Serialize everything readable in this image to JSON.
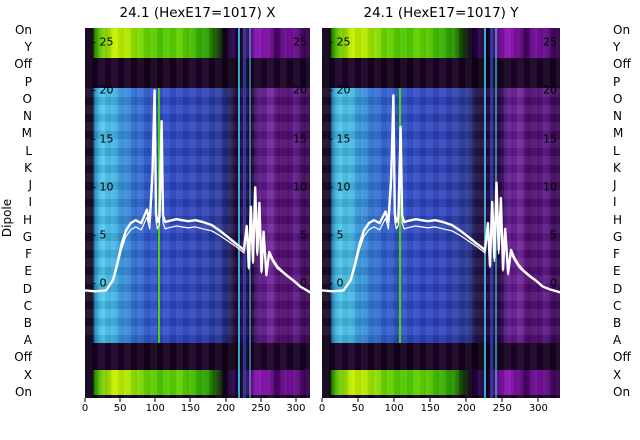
{
  "left_axis": {
    "title": "Dipole",
    "row_labels": [
      "On",
      "Y",
      "Off",
      "P",
      "O",
      "N",
      "M",
      "L",
      "K",
      "J",
      "I",
      "H",
      "G",
      "F",
      "E",
      "D",
      "C",
      "B",
      "A",
      "Off",
      "X",
      "On"
    ]
  },
  "right_axis": {
    "row_labels": [
      "On",
      "Y",
      "Off",
      "P",
      "O",
      "N",
      "M",
      "L",
      "K",
      "J",
      "I",
      "H",
      "G",
      "F",
      "E",
      "D",
      "C",
      "B",
      "A",
      "Off",
      "X",
      "On"
    ]
  },
  "palette": {
    "background": "#ffffff",
    "dark_purple_band": "#140020",
    "green_band": "#4cc800",
    "yellow_green_peak": "#c8f000",
    "interior_cyan": "#49c9ec",
    "interior_blue": "#2c46c6",
    "interior_violet": "#6d1f9a",
    "trace_color": "#ffffff",
    "text_color": "#000000"
  },
  "chart_data": [
    {
      "type": "heatmap",
      "title": "24.1 (HexE17=1017) X",
      "xlabel": "",
      "ylabel": "Dipole",
      "x_ticks": [
        0,
        50,
        100,
        150,
        200,
        250,
        300
      ],
      "x_max": 320,
      "y_ticks": [
        25,
        20,
        15,
        10,
        5,
        0
      ],
      "y_tick_prefix_left": "- ",
      "y_view_range": [
        -12,
        26.5
      ],
      "grid": false,
      "legend": false,
      "rows_top_to_bottom": [
        "On",
        "Y",
        "Off",
        "P",
        "O",
        "N",
        "M",
        "L",
        "K",
        "J",
        "I",
        "H",
        "G",
        "F",
        "E",
        "D",
        "C",
        "B",
        "A",
        "Off",
        "X",
        "On"
      ],
      "band_structure_top_to_bottom": [
        {
          "rows": "On,Y",
          "appearance": "bright green / yellow-green, dark at left edge, purple-magenta at right"
        },
        {
          "rows": "Off",
          "appearance": "very dark purple"
        },
        {
          "rows": "P..A",
          "appearance": "cyan at left fading to blue, dark purple column ~66-74%, violet at right; thin green vertical line ~32%; cyan/blue vertical streaks ~68-73%"
        },
        {
          "rows": "Off",
          "appearance": "very dark purple"
        },
        {
          "rows": "X",
          "appearance": "bright green / yellow-green"
        },
        {
          "rows": "On",
          "appearance": "dark purple"
        }
      ],
      "overlay_traces": [
        {
          "color": "#ffffff",
          "x": [
            0,
            15,
            30,
            40,
            46,
            52,
            58,
            65,
            72,
            80,
            88,
            92,
            96,
            99,
            101,
            103,
            106,
            109,
            111,
            114,
            118,
            124,
            130,
            138,
            147,
            157,
            168,
            180,
            192,
            204,
            214,
            221,
            226,
            230,
            233,
            236,
            239,
            242,
            245,
            248,
            251,
            254,
            258,
            262,
            267,
            273,
            280,
            288,
            297,
            306,
            313,
            320
          ],
          "v": [
            -0.8,
            -0.9,
            -0.8,
            0.3,
            2.0,
            4.0,
            5.4,
            6.2,
            6.5,
            6.2,
            7.6,
            6.3,
            11.5,
            20.0,
            7.2,
            6.3,
            6.8,
            16.8,
            7.0,
            6.3,
            6.4,
            6.5,
            6.6,
            6.5,
            6.4,
            6.5,
            6.3,
            6.0,
            5.4,
            4.7,
            4.1,
            3.7,
            3.4,
            5.9,
            1.6,
            7.9,
            2.2,
            9.9,
            3.1,
            8.3,
            1.2,
            5.3,
            0.8,
            3.2,
            2.4,
            1.7,
            1.2,
            0.7,
            0.2,
            -0.4,
            -0.7,
            -1.0
          ]
        },
        {
          "color": "#ffffff",
          "x": [
            0,
            15,
            30,
            40,
            46,
            52,
            58,
            65,
            72,
            80,
            88,
            92,
            96,
            99,
            101,
            103,
            106,
            109,
            111,
            114,
            118,
            124,
            130,
            138,
            147,
            157,
            168,
            180,
            192,
            204,
            214,
            221,
            226,
            230,
            233,
            236,
            239,
            242,
            245,
            248,
            251,
            254,
            258,
            262,
            267,
            273,
            280,
            288,
            297,
            306,
            313,
            320
          ],
          "v": [
            -0.8,
            -0.9,
            -0.8,
            0.2,
            1.7,
            3.5,
            4.8,
            5.5,
            5.8,
            5.5,
            6.8,
            5.6,
            10.2,
            18.3,
            6.4,
            5.6,
            6.0,
            14.8,
            6.2,
            5.6,
            5.7,
            5.8,
            5.9,
            5.8,
            5.7,
            5.8,
            5.6,
            5.4,
            4.9,
            4.3,
            3.8,
            3.4,
            3.1,
            5.3,
            1.4,
            7.1,
            2.0,
            9.0,
            2.8,
            7.5,
            1.0,
            4.8,
            0.7,
            2.9,
            2.2,
            1.5,
            1.1,
            0.6,
            0.15,
            -0.4,
            -0.7,
            -1.0
          ]
        }
      ]
    },
    {
      "type": "heatmap",
      "title": "24.1 (HexE17=1017) Y",
      "xlabel": "",
      "ylabel": "Dipole",
      "x_ticks": [
        0,
        50,
        100,
        150,
        200,
        250,
        300
      ],
      "x_max": 330,
      "y_ticks": [
        25,
        20,
        15,
        10,
        5,
        0
      ],
      "y_tick_prefix_left": "- ",
      "y_view_range": [
        -12,
        26.5
      ],
      "grid": false,
      "legend": false,
      "rows_top_to_bottom": [
        "On",
        "Y",
        "Off",
        "P",
        "O",
        "N",
        "M",
        "L",
        "K",
        "J",
        "I",
        "H",
        "G",
        "F",
        "E",
        "D",
        "C",
        "B",
        "A",
        "Off",
        "X",
        "On"
      ],
      "band_structure_top_to_bottom": [
        {
          "rows": "On,Y",
          "appearance": "bright green / yellow-green, dark at left edge, purple-magenta at right"
        },
        {
          "rows": "Off",
          "appearance": "very dark purple"
        },
        {
          "rows": "P..A",
          "appearance": "cyan at left fading to blue, dark purple column ~66-74%, violet at right; thin green vertical line ~32%; cyan/blue vertical streaks ~68-73%"
        },
        {
          "rows": "Off",
          "appearance": "very dark purple"
        },
        {
          "rows": "X",
          "appearance": "bright green / yellow-green"
        },
        {
          "rows": "On",
          "appearance": "dark purple"
        }
      ],
      "overlay_traces": [
        {
          "color": "#ffffff",
          "x": [
            0,
            15,
            30,
            40,
            46,
            52,
            58,
            65,
            72,
            80,
            88,
            92,
            96,
            99,
            101,
            103,
            106,
            109,
            111,
            114,
            118,
            124,
            130,
            138,
            147,
            157,
            168,
            180,
            192,
            204,
            214,
            221,
            226,
            230,
            233,
            236,
            239,
            242,
            245,
            248,
            251,
            254,
            258,
            262,
            267,
            273,
            280,
            288,
            297,
            306,
            316,
            330
          ],
          "v": [
            -0.8,
            -0.9,
            -0.8,
            0.3,
            2.0,
            4.0,
            5.4,
            6.2,
            6.5,
            6.2,
            7.4,
            6.3,
            11.0,
            19.5,
            7.2,
            6.3,
            6.8,
            16.2,
            7.0,
            6.3,
            6.4,
            6.5,
            6.6,
            6.5,
            6.4,
            6.5,
            6.3,
            6.0,
            5.4,
            4.7,
            4.1,
            3.7,
            3.4,
            6.2,
            1.8,
            8.4,
            2.5,
            10.4,
            3.4,
            8.8,
            1.4,
            5.6,
            1.0,
            3.4,
            2.5,
            1.8,
            1.2,
            0.7,
            0.2,
            -0.4,
            -0.7,
            -1.0
          ]
        },
        {
          "color": "#ffffff",
          "x": [
            0,
            15,
            30,
            40,
            46,
            52,
            58,
            65,
            72,
            80,
            88,
            92,
            96,
            99,
            101,
            103,
            106,
            109,
            111,
            114,
            118,
            124,
            130,
            138,
            147,
            157,
            168,
            180,
            192,
            204,
            214,
            221,
            226,
            230,
            233,
            236,
            239,
            242,
            245,
            248,
            251,
            254,
            258,
            262,
            267,
            273,
            280,
            288,
            297,
            306,
            316,
            330
          ],
          "v": [
            -0.8,
            -0.9,
            -0.8,
            0.2,
            1.7,
            3.5,
            4.8,
            5.5,
            5.8,
            5.5,
            6.7,
            5.6,
            9.8,
            17.8,
            6.4,
            5.6,
            6.0,
            14.2,
            6.2,
            5.6,
            5.7,
            5.8,
            5.9,
            5.8,
            5.7,
            5.8,
            5.6,
            5.4,
            4.9,
            4.3,
            3.8,
            3.4,
            3.1,
            5.6,
            1.6,
            7.6,
            2.2,
            9.4,
            3.0,
            8.0,
            1.2,
            5.0,
            0.8,
            3.0,
            2.3,
            1.6,
            1.1,
            0.6,
            0.15,
            -0.4,
            -0.7,
            -1.0
          ]
        }
      ]
    }
  ]
}
